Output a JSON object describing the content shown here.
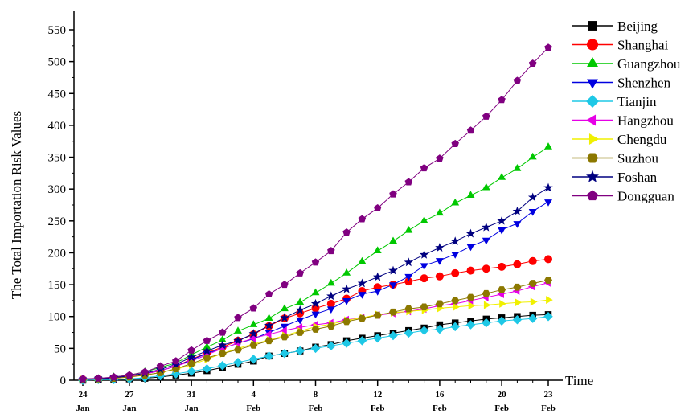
{
  "chart_data": {
    "type": "line",
    "y_label": "The Total Importation Risk Values",
    "x_label": "Time",
    "categories": [
      "24\nJan",
      null,
      null,
      "27\nJan",
      null,
      null,
      null,
      "31\nJan",
      null,
      null,
      null,
      "4\nFeb",
      null,
      null,
      null,
      "8\nFeb",
      null,
      null,
      null,
      "12\nFeb",
      null,
      null,
      null,
      "16\nFeb",
      null,
      null,
      null,
      "20\nFeb",
      null,
      null,
      "23\nFeb"
    ],
    "ylim": [
      0,
      550
    ],
    "yticks": [
      0,
      50,
      100,
      150,
      200,
      250,
      300,
      350,
      400,
      450,
      500,
      550
    ],
    "legend": "right",
    "series": [
      {
        "name": "Beijing",
        "color": "#000000",
        "marker": "square",
        "values": [
          0,
          1,
          1,
          2,
          3,
          5,
          8,
          11,
          15,
          20,
          25,
          30,
          38,
          42,
          46,
          52,
          56,
          62,
          66,
          70,
          74,
          78,
          82,
          87,
          90,
          93,
          96,
          98,
          100,
          102,
          103
        ]
      },
      {
        "name": "Shanghai",
        "color": "#ff0000",
        "marker": "circle",
        "values": [
          1,
          2,
          3,
          6,
          10,
          15,
          22,
          33,
          43,
          52,
          62,
          72,
          85,
          97,
          105,
          113,
          120,
          128,
          140,
          146,
          150,
          155,
          160,
          163,
          168,
          172,
          175,
          178,
          182,
          187,
          190
        ]
      },
      {
        "name": "Guangzhou",
        "color": "#00c800",
        "marker": "triangle-up",
        "values": [
          1,
          2,
          5,
          8,
          13,
          20,
          27,
          40,
          52,
          63,
          77,
          87,
          97,
          112,
          122,
          137,
          152,
          168,
          186,
          203,
          218,
          235,
          250,
          262,
          278,
          290,
          302,
          318,
          332,
          350,
          366
        ]
      },
      {
        "name": "Shenzhen",
        "color": "#0000e0",
        "marker": "triangle-down",
        "values": [
          1,
          2,
          4,
          6,
          10,
          15,
          22,
          32,
          42,
          50,
          58,
          65,
          75,
          85,
          95,
          104,
          112,
          125,
          135,
          140,
          150,
          163,
          180,
          188,
          198,
          210,
          220,
          236,
          246,
          265,
          280
        ]
      },
      {
        "name": "Tianjin",
        "color": "#1ec8e6",
        "marker": "diamond",
        "values": [
          0,
          1,
          1,
          2,
          4,
          7,
          10,
          14,
          18,
          23,
          28,
          33,
          38,
          42,
          46,
          50,
          54,
          58,
          62,
          66,
          70,
          74,
          78,
          80,
          84,
          87,
          90,
          93,
          95,
          97,
          100
        ]
      },
      {
        "name": "Hangzhou",
        "color": "#e600e6",
        "marker": "triangle-left",
        "values": [
          1,
          2,
          3,
          6,
          10,
          15,
          22,
          30,
          40,
          50,
          58,
          66,
          72,
          78,
          83,
          87,
          90,
          95,
          98,
          102,
          105,
          108,
          112,
          117,
          120,
          125,
          130,
          135,
          140,
          147,
          153
        ]
      },
      {
        "name": "Chengdu",
        "color": "#f0f000",
        "marker": "triangle-right",
        "values": [
          1,
          2,
          3,
          5,
          8,
          12,
          17,
          24,
          33,
          42,
          50,
          57,
          63,
          70,
          77,
          84,
          88,
          94,
          98,
          103,
          106,
          108,
          110,
          113,
          115,
          117,
          118,
          120,
          122,
          123,
          126
        ]
      },
      {
        "name": "Suzhou",
        "color": "#8c7800",
        "marker": "hexagon",
        "values": [
          1,
          2,
          3,
          5,
          8,
          12,
          18,
          26,
          35,
          42,
          48,
          55,
          62,
          68,
          75,
          80,
          85,
          92,
          97,
          102,
          107,
          112,
          115,
          120,
          125,
          130,
          136,
          142,
          146,
          152,
          157
        ]
      },
      {
        "name": "Foshan",
        "color": "#000080",
        "marker": "star",
        "values": [
          1,
          2,
          4,
          7,
          11,
          17,
          25,
          36,
          46,
          55,
          62,
          73,
          86,
          98,
          110,
          120,
          132,
          143,
          152,
          162,
          172,
          185,
          197,
          208,
          218,
          230,
          240,
          250,
          265,
          287,
          302
        ]
      },
      {
        "name": "Dongguan",
        "color": "#800080",
        "marker": "pentagon",
        "values": [
          2,
          3,
          5,
          8,
          13,
          22,
          30,
          47,
          62,
          75,
          98,
          113,
          135,
          150,
          168,
          185,
          203,
          232,
          253,
          270,
          292,
          311,
          333,
          348,
          371,
          392,
          414,
          440,
          470,
          497,
          522
        ]
      }
    ]
  }
}
